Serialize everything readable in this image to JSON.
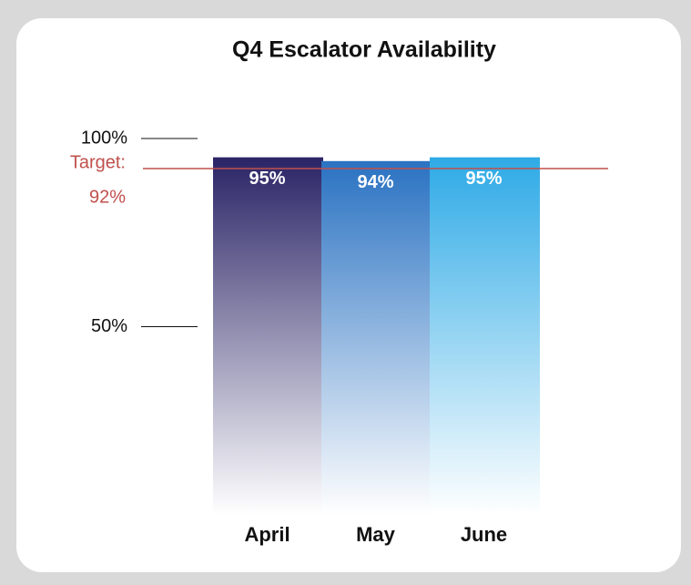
{
  "chart_data": {
    "type": "bar",
    "title": "Q4 Escalator Availability",
    "categories": [
      "April",
      "May",
      "June"
    ],
    "values": [
      95,
      94,
      95
    ],
    "value_labels": [
      "95%",
      "94%",
      "95%"
    ],
    "colors": [
      "#2a2466",
      "#2a72c2",
      "#2eaae6"
    ],
    "ylim": [
      0,
      100
    ],
    "yticks": [
      {
        "value": 50,
        "label": "50%"
      },
      {
        "value": 100,
        "label": "100%"
      }
    ],
    "target": {
      "label": "Target:",
      "value": 92,
      "value_label": "92%",
      "color": "#c0504d"
    }
  }
}
